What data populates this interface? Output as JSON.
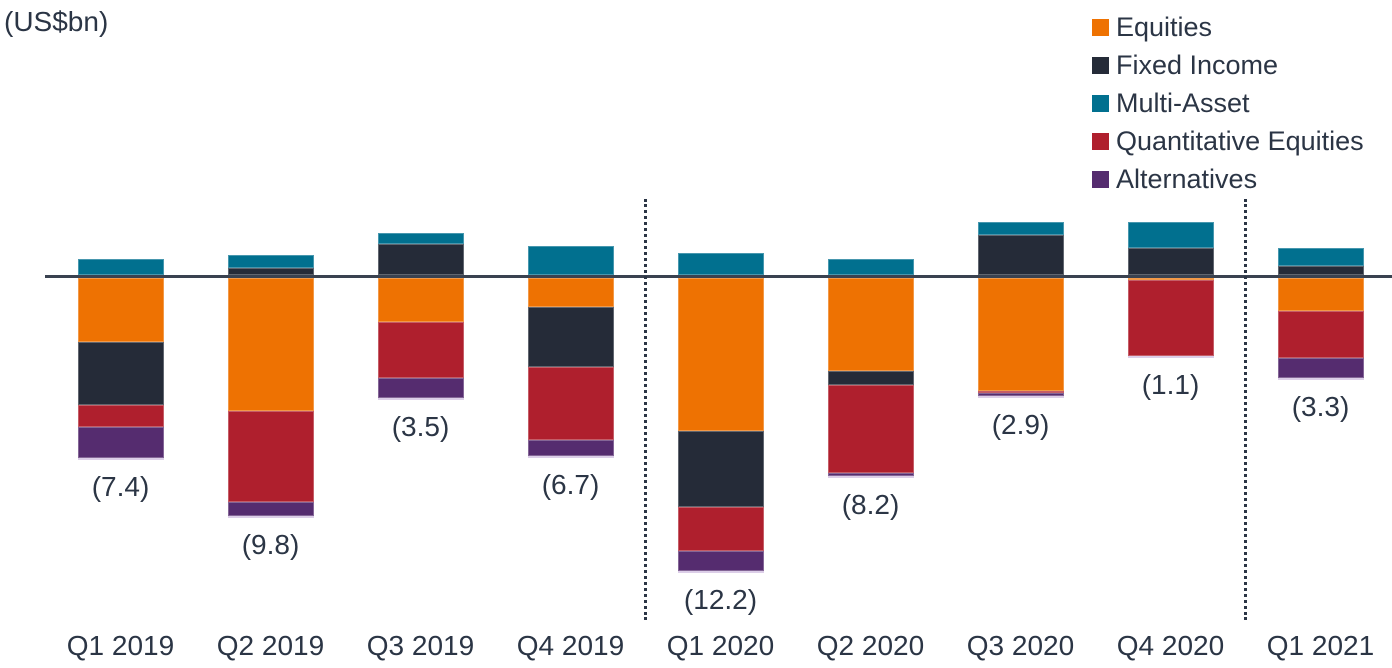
{
  "title": "(US$bn)",
  "colors": {
    "equities": "#EE7202",
    "fixed_income": "#252B38",
    "multi_asset": "#01708F",
    "quant_equities": "#AF1F2D",
    "alternatives": "#552C6F",
    "axis_line": "#3A4250",
    "text": "#2B3545"
  },
  "chart_data": {
    "type": "bar",
    "stacked": true,
    "unit": "US$bn",
    "title": "(US$bn)",
    "xlabel": "",
    "ylabel": "",
    "grid": false,
    "legend_position": "top-right",
    "categories": [
      "Q1 2019",
      "Q2 2019",
      "Q3 2019",
      "Q4 2019",
      "Q1 2020",
      "Q2 2020",
      "Q3 2020",
      "Q4 2020",
      "Q1 2021"
    ],
    "series": [
      {
        "name": "Equities",
        "color": "#EE7202",
        "values": [
          -2.9,
          -6.0,
          -2.0,
          -1.3,
          -6.9,
          -4.2,
          -5.1,
          -0.1,
          -1.5
        ]
      },
      {
        "name": "Fixed Income",
        "color": "#252B38",
        "values": [
          -2.8,
          0.3,
          1.4,
          -2.7,
          -3.4,
          -0.6,
          1.8,
          1.2,
          0.4
        ]
      },
      {
        "name": "Multi-Asset",
        "color": "#01708F",
        "values": [
          0.7,
          0.6,
          0.5,
          1.3,
          1.0,
          0.7,
          0.6,
          1.2,
          0.8
        ]
      },
      {
        "name": "Quantitative Equities",
        "color": "#AF1F2D",
        "values": [
          -1.0,
          -4.1,
          -2.5,
          -3.3,
          -2.0,
          -4.0,
          -0.1,
          -3.4,
          -2.1
        ]
      },
      {
        "name": "Alternatives",
        "color": "#552C6F",
        "values": [
          -1.4,
          -0.6,
          -0.9,
          -0.7,
          -0.9,
          -0.1,
          -0.1,
          0.0,
          -0.9
        ]
      }
    ],
    "totals": [
      -7.4,
      -9.8,
      -3.5,
      -6.7,
      -12.2,
      -8.2,
      -2.9,
      -1.1,
      -3.3
    ],
    "total_labels": [
      "(7.4)",
      "(9.8)",
      "(3.5)",
      "(6.7)",
      "(12.2)",
      "(8.2)",
      "(2.9)",
      "(1.1)",
      "(3.3)"
    ],
    "separators_after": [
      "Q4 2019",
      "Q4 2020"
    ],
    "axis": {
      "zero_line": true,
      "y_axis_labels": false
    }
  }
}
